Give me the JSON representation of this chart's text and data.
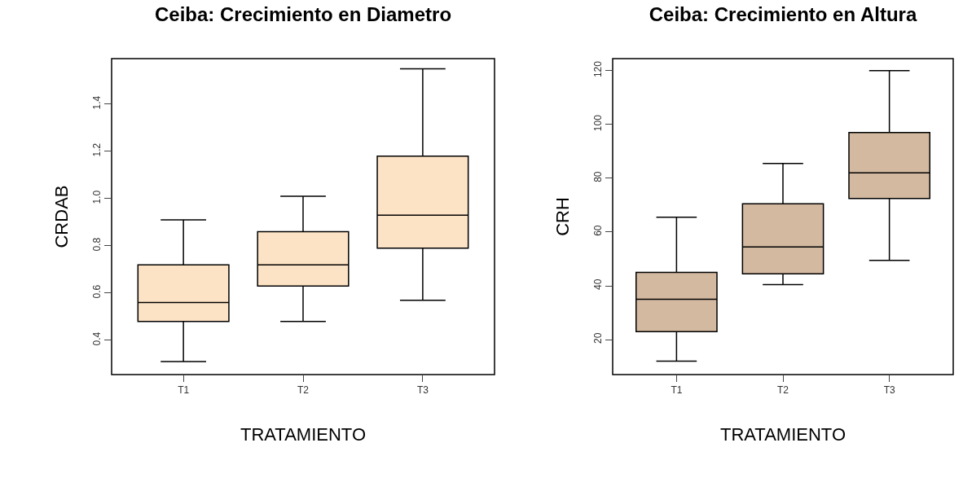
{
  "chart_data": [
    {
      "type": "box",
      "title": "Ceiba: Crecimiento en Diametro",
      "xlabel": "TRATAMIENTO",
      "ylabel": "CRDAB",
      "categories": [
        "T1",
        "T2",
        "T3"
      ],
      "color": "#fde3c5",
      "ylim": [
        0.255,
        1.593
      ],
      "yticks": [
        0.4,
        0.6,
        0.8,
        {
          "value": 1,
          "label": "1.0"
        },
        1.2,
        1.4
      ],
      "grid": false,
      "boxes": [
        {
          "low": 0.31,
          "q1": 0.48,
          "median": 0.56,
          "q3": 0.72,
          "high": 0.91
        },
        {
          "low": 0.48,
          "q1": 0.63,
          "median": 0.72,
          "q3": 0.86,
          "high": 1.01
        },
        {
          "low": 0.57,
          "q1": 0.79,
          "median": 0.93,
          "q3": 1.18,
          "high": 1.55
        }
      ]
    },
    {
      "type": "box",
      "title": "Ceiba: Crecimiento en Altura",
      "xlabel": "TRATAMIENTO",
      "ylabel": "CRH",
      "categories": [
        "T1",
        "T2",
        "T3"
      ],
      "color": "#d2b9a0",
      "ylim": [
        7,
        124.5
      ],
      "yticks": [
        20,
        40,
        60,
        80,
        100,
        120
      ],
      "grid": false,
      "boxes": [
        {
          "low": 12,
          "q1": 23,
          "median": 35,
          "q3": 45,
          "high": 65.5
        },
        {
          "low": 40.5,
          "q1": 44.5,
          "median": 54.5,
          "q3": 70.5,
          "high": 85.5
        },
        {
          "low": 49.5,
          "q1": 72.5,
          "median": 82,
          "q3": 97,
          "high": 120
        }
      ]
    }
  ]
}
